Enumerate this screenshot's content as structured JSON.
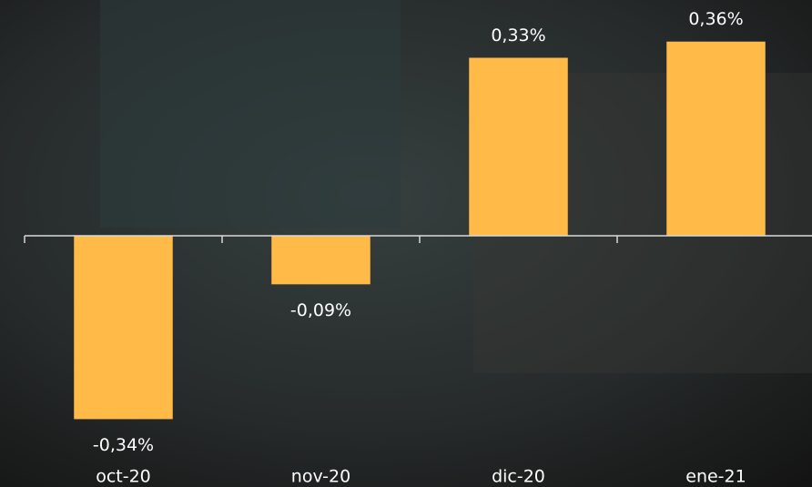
{
  "chart_data": {
    "type": "bar",
    "categories": [
      "oct-20",
      "nov-20",
      "dic-20",
      "ene-21"
    ],
    "values": [
      -0.34,
      -0.09,
      0.33,
      0.36
    ],
    "value_labels": [
      "-0,34%",
      "-0,09%",
      "0,33%",
      "0,36%"
    ],
    "color": "#ffba47",
    "ylim": [
      -0.4,
      0.4
    ]
  }
}
